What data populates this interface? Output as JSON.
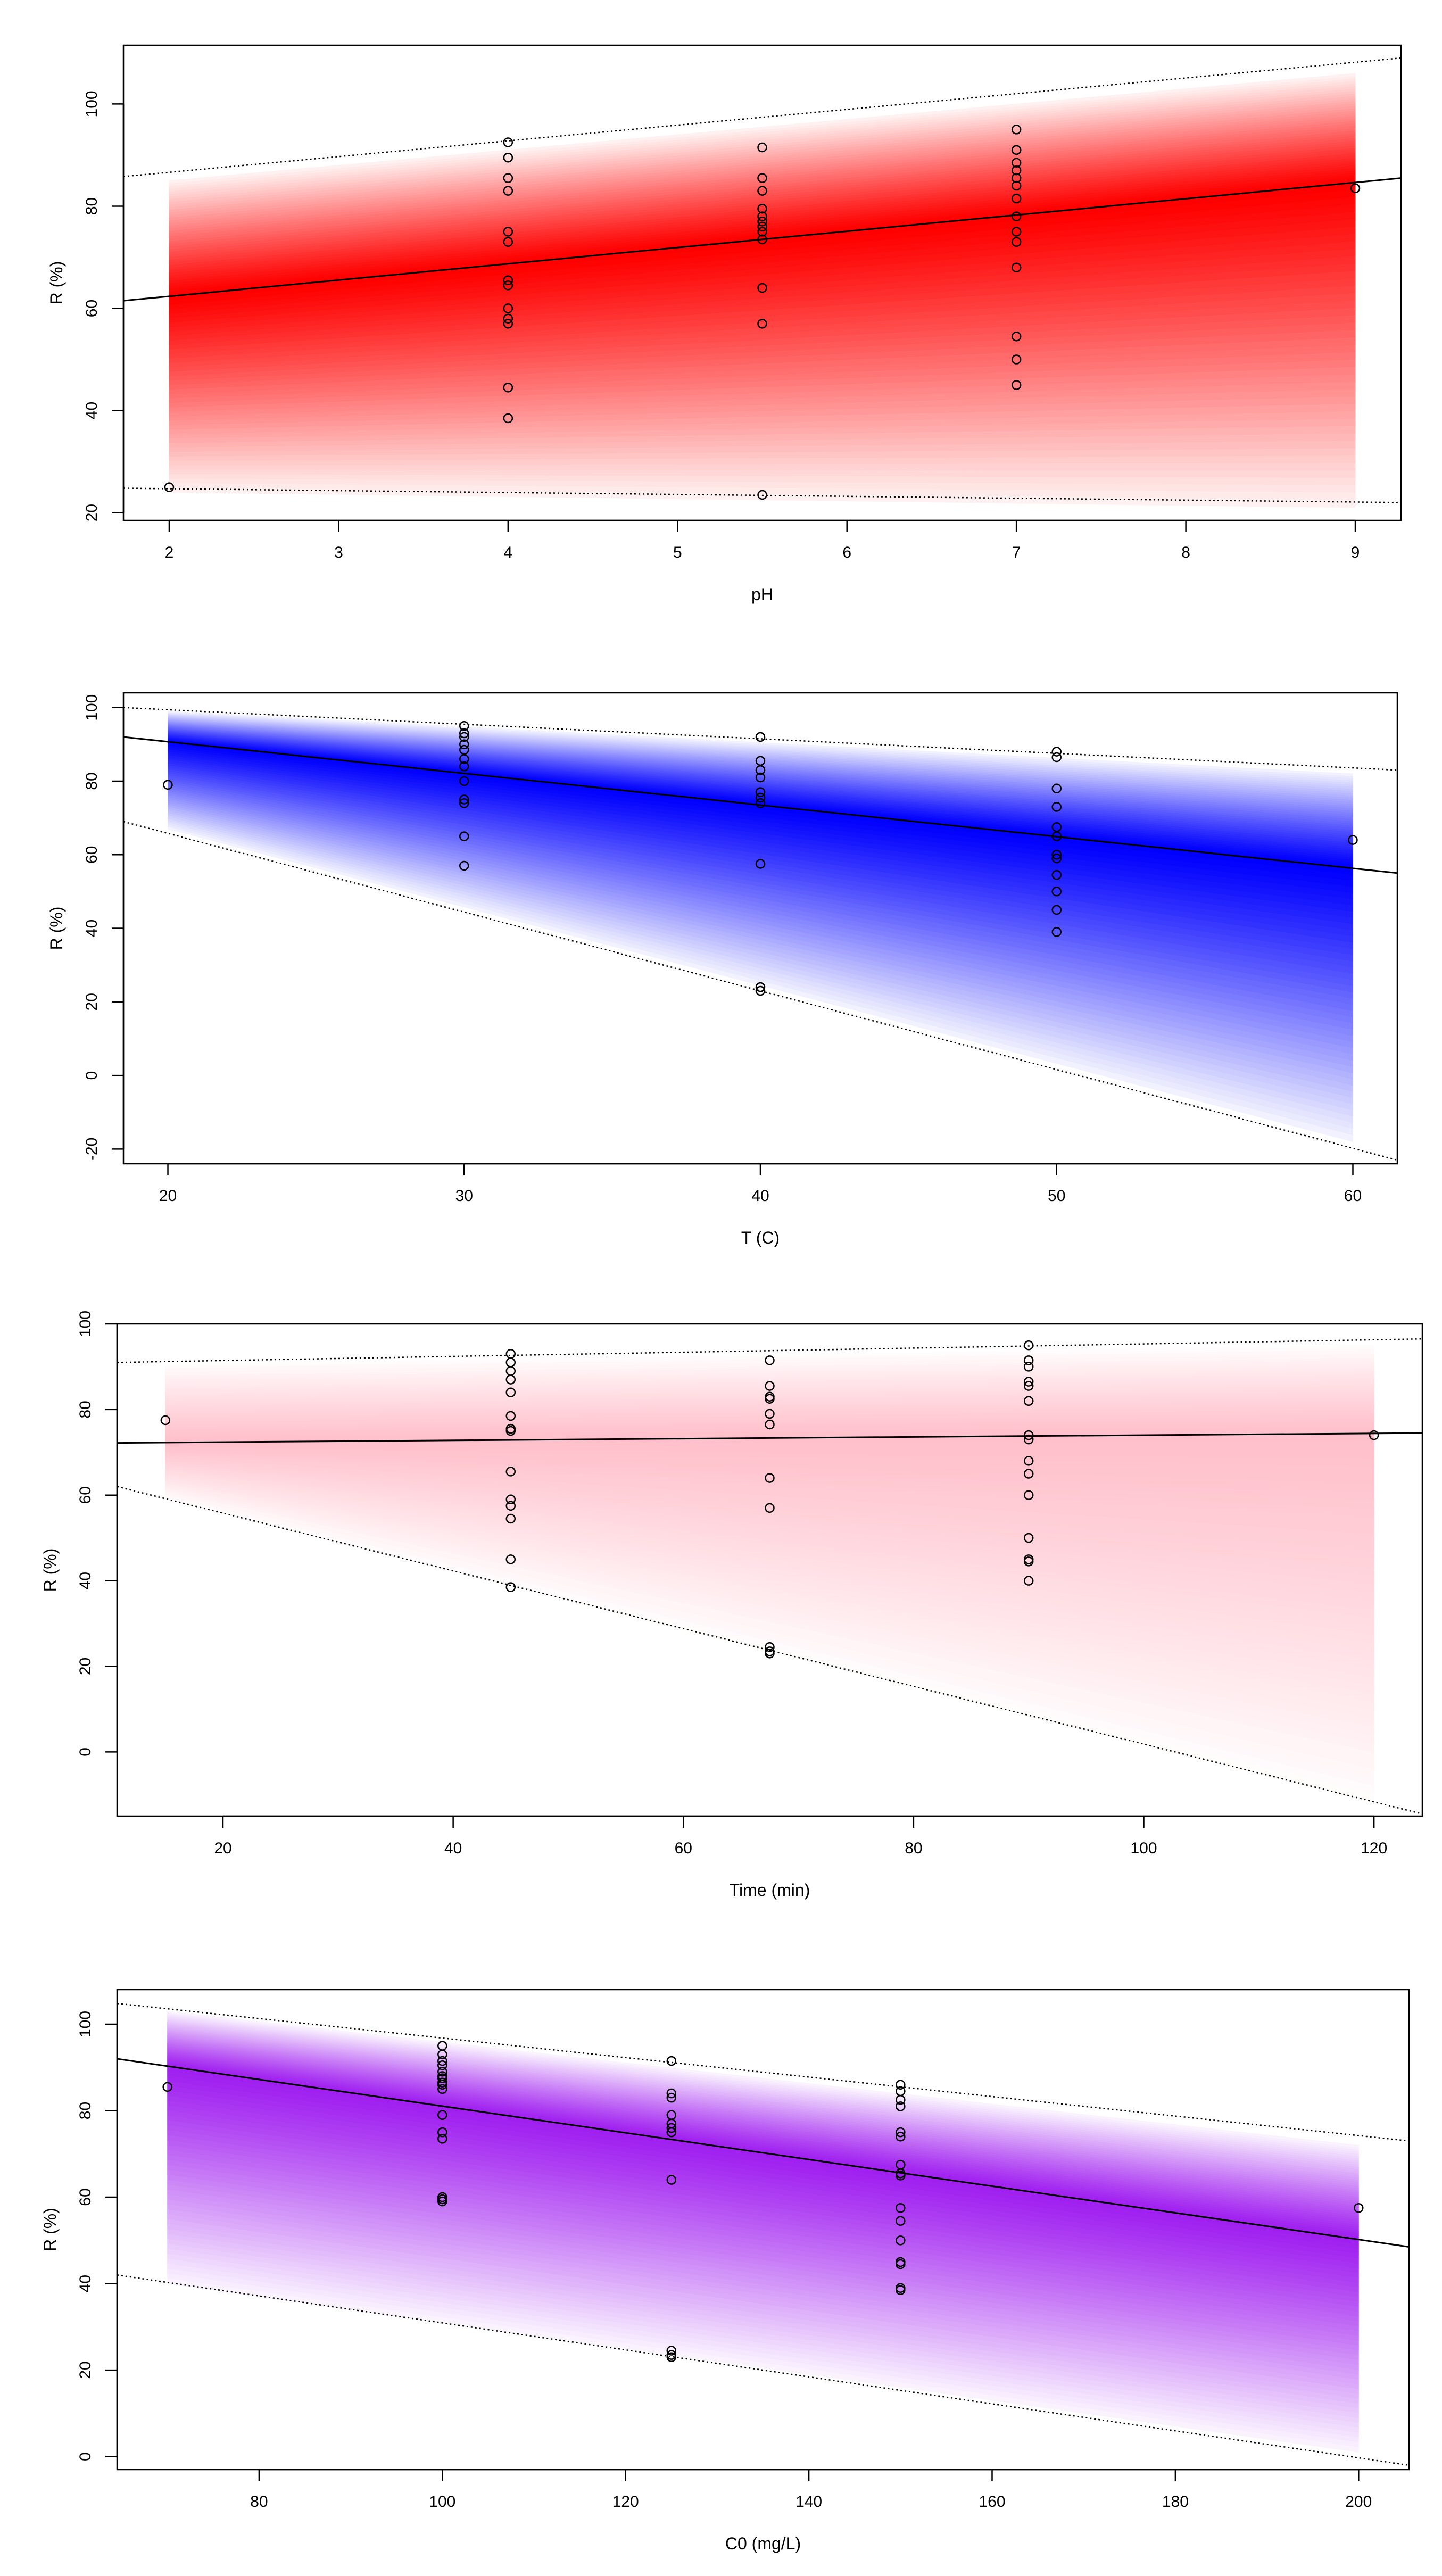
{
  "chart_data": [
    {
      "type": "scatter",
      "title": "",
      "xlabel": "pH",
      "ylabel": "R (%)",
      "xlim": [
        1.73,
        9.27
      ],
      "ylim": [
        18.5,
        111.5
      ],
      "xticks": [
        2,
        3,
        4,
        5,
        6,
        7,
        8,
        9
      ],
      "yticks": [
        20,
        40,
        60,
        80,
        100
      ],
      "band_color": "#ff0000",
      "band_x": [
        2,
        9
      ],
      "fit_line": {
        "y_at_xlim": [
          61.5,
          85.5
        ]
      },
      "band_upper": {
        "y_at_xlim": [
          85.8,
          109.0
        ]
      },
      "band_lower": {
        "y_at_xlim": [
          24.8,
          22.0
        ]
      },
      "band_fill_upper": {
        "y_at_band_x": [
          85.0,
          106.0
        ]
      },
      "band_fill_lower": {
        "y_at_band_x": [
          24.0,
          21.0
        ]
      },
      "points": {
        "x": [
          2,
          4,
          4,
          4,
          4,
          4,
          4,
          4,
          4,
          4,
          4,
          4,
          4,
          4,
          4,
          5.5,
          5.5,
          5.5,
          5.5,
          5.5,
          5.5,
          5.5,
          5.5,
          5.5,
          5.5,
          5.5,
          5.5,
          7,
          7,
          7,
          7,
          7,
          7,
          7,
          7,
          7,
          7,
          7,
          7,
          7,
          7,
          7,
          9
        ],
        "y": [
          25,
          92.5,
          89.5,
          89.5,
          85.5,
          83,
          75,
          73,
          65.5,
          64.5,
          60,
          58,
          57,
          44.5,
          38.5,
          91.5,
          85.5,
          83,
          79.5,
          78,
          77,
          76,
          75,
          73.5,
          64,
          57,
          23.5,
          95,
          91,
          91,
          88.5,
          87,
          85.5,
          84,
          81.5,
          78,
          75,
          73,
          68,
          54.5,
          50,
          45,
          83.5
        ]
      }
    },
    {
      "type": "scatter",
      "title": "",
      "xlabel": "T (C)",
      "ylabel": "R (%)",
      "xlim": [
        18.5,
        61.5
      ],
      "ylim": [
        -24,
        104
      ],
      "xticks": [
        20,
        30,
        40,
        50,
        60
      ],
      "yticks": [
        -20,
        0,
        20,
        40,
        60,
        80,
        100
      ],
      "band_color": "#0000ff",
      "band_x": [
        20,
        60
      ],
      "fit_line": {
        "y_at_xlim": [
          92,
          55
        ]
      },
      "band_upper": {
        "y_at_xlim": [
          100,
          83
        ]
      },
      "band_lower": {
        "y_at_xlim": [
          69,
          -23
        ]
      },
      "band_fill_upper": {
        "y_at_band_x": [
          99,
          82
        ]
      },
      "band_fill_lower": {
        "y_at_band_x": [
          67,
          -18
        ]
      },
      "points": {
        "x": [
          20,
          30,
          30,
          30,
          30,
          30,
          30,
          30,
          30,
          30,
          30,
          30,
          30,
          40,
          40,
          40,
          40,
          40,
          40,
          40,
          40,
          40,
          40,
          50,
          50,
          50,
          50,
          50,
          50,
          50,
          50,
          50,
          50,
          50,
          50,
          60
        ],
        "y": [
          79,
          95,
          93,
          92,
          90,
          88.5,
          86,
          84,
          80,
          75,
          74,
          65,
          57,
          92,
          85.5,
          83,
          81,
          77,
          75.5,
          74,
          57.5,
          24,
          23,
          88,
          86.5,
          78,
          73,
          67.5,
          65,
          60,
          59,
          54.5,
          50,
          45,
          39,
          64
        ]
      }
    },
    {
      "type": "scatter",
      "title": "",
      "xlabel": "Time (min)",
      "ylabel": "R (%)",
      "xlim": [
        10.8,
        124.2
      ],
      "ylim": [
        -15,
        100
      ],
      "xticks": [
        20,
        40,
        60,
        80,
        100,
        120
      ],
      "yticks": [
        0,
        20,
        40,
        60,
        80,
        100
      ],
      "band_color": "#ffc0cb",
      "band_x": [
        15,
        120
      ],
      "fit_line": {
        "y_at_xlim": [
          72.2,
          74.5
        ]
      },
      "band_upper": {
        "y_at_xlim": [
          91,
          96.5
        ]
      },
      "band_lower": {
        "y_at_xlim": [
          62,
          -14.5
        ]
      },
      "band_fill_upper": {
        "y_at_band_x": [
          90.5,
          95
        ]
      },
      "band_fill_lower": {
        "y_at_band_x": [
          59,
          -12
        ]
      },
      "points": {
        "x": [
          15,
          45,
          45,
          45,
          45,
          45,
          45,
          45,
          45,
          45,
          45,
          45,
          45,
          45,
          45,
          67.5,
          67.5,
          67.5,
          67.5,
          67.5,
          67.5,
          67.5,
          67.5,
          67.5,
          67.5,
          67.5,
          90,
          90,
          90,
          90,
          90,
          90,
          90,
          90,
          90,
          90,
          90,
          90,
          90,
          90,
          90,
          120
        ],
        "y": [
          77.5,
          93,
          91,
          89,
          87,
          84,
          78.5,
          75.5,
          75,
          65.5,
          59,
          57.5,
          54.5,
          45,
          38.5,
          91.5,
          85.5,
          83,
          82.5,
          79,
          76.5,
          64,
          57,
          24.5,
          23.5,
          23,
          95,
          91.5,
          90,
          86.5,
          85.5,
          82,
          74,
          73,
          68,
          65,
          60,
          50,
          45,
          44.5,
          40,
          74
        ]
      }
    },
    {
      "type": "scatter",
      "title": "",
      "xlabel": "C0 (mg/L)",
      "ylabel": "R (%)",
      "xlim": [
        64.5,
        205.5
      ],
      "ylim": [
        -3,
        108
      ],
      "xticks": [
        80,
        100,
        120,
        140,
        160,
        180,
        200
      ],
      "yticks": [
        0,
        20,
        40,
        60,
        80,
        100
      ],
      "band_color": "#a020f0",
      "band_x": [
        70,
        200
      ],
      "fit_line": {
        "y_at_xlim": [
          92,
          48.5
        ]
      },
      "band_upper": {
        "y_at_xlim": [
          104.8,
          73
        ]
      },
      "band_lower": {
        "y_at_xlim": [
          42,
          -2
        ]
      },
      "band_fill_upper": {
        "y_at_band_x": [
          103,
          72
        ]
      },
      "band_fill_lower": {
        "y_at_band_x": [
          40,
          1
        ]
      },
      "points": {
        "x": [
          70,
          100,
          100,
          100,
          100,
          100,
          100,
          100,
          100,
          100,
          100,
          100,
          100,
          100,
          100,
          100,
          100,
          125,
          125,
          125,
          125,
          125,
          125,
          125,
          125,
          125,
          125,
          125,
          150,
          150,
          150,
          150,
          150,
          150,
          150,
          150,
          150,
          150,
          150,
          150,
          150,
          150,
          150,
          150,
          200
        ],
        "y": [
          85.5,
          95,
          93,
          91.5,
          90.5,
          89,
          88,
          87.5,
          86.5,
          86,
          85,
          79,
          75,
          73.5,
          60,
          59.5,
          59,
          91.5,
          84,
          83,
          79,
          77,
          76,
          75,
          64,
          24.5,
          23.5,
          23,
          86,
          84.5,
          82.5,
          81,
          75,
          74,
          67.5,
          65.5,
          65,
          57.5,
          54.5,
          50,
          45,
          44.5,
          39,
          38.5,
          57.5
        ]
      }
    }
  ]
}
